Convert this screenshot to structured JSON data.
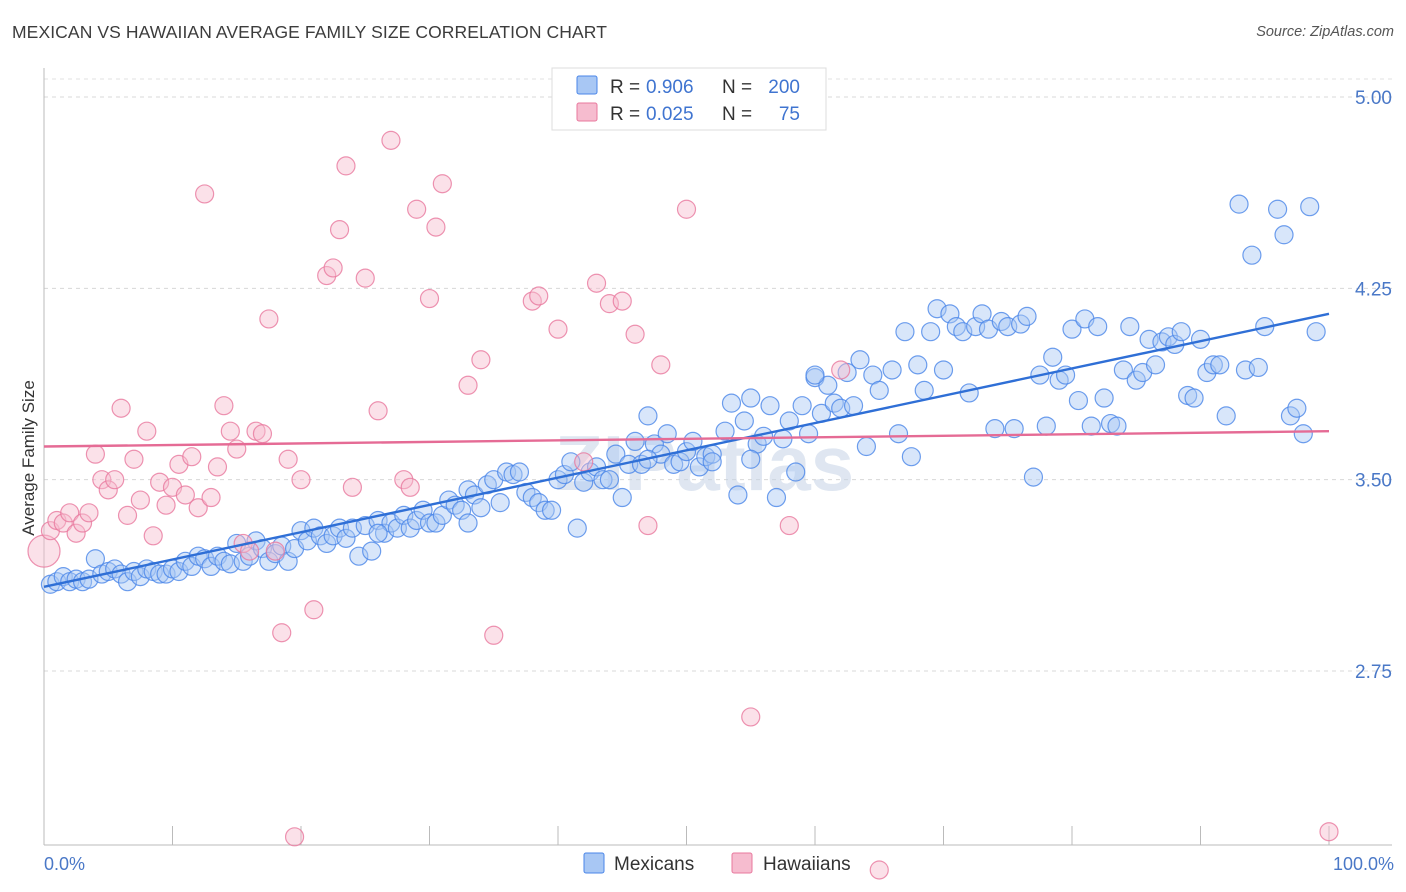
{
  "header": {
    "title": "MEXICAN VS HAWAIIAN AVERAGE FAMILY SIZE CORRELATION CHART",
    "source": "Source: ZipAtlas.com"
  },
  "watermark": "ZIPatlas",
  "legend": {
    "r_label": "R =",
    "n_label": "N =",
    "rows": [
      {
        "r": "0.906",
        "n": "200",
        "color": "#4a86e8"
      },
      {
        "r": "0.025",
        "n": "75",
        "color": "#e8789e"
      }
    ]
  },
  "bottom_legend": [
    {
      "label": "Mexicans",
      "color": "#4a86e8"
    },
    {
      "label": "Hawaiians",
      "color": "#e8789e"
    }
  ],
  "chart_data": {
    "type": "scatter",
    "xlabel": "",
    "ylabel": "Average Family Size",
    "xlim": [
      0,
      100
    ],
    "ylim": [
      2.0,
      5.1
    ],
    "x_tick_labels": [
      {
        "v": 0,
        "t": "0.0%"
      },
      {
        "v": 100,
        "t": "100.0%"
      }
    ],
    "y_ticks": [
      {
        "v": 5.0,
        "t": "5.00"
      },
      {
        "v": 4.25,
        "t": "4.25"
      },
      {
        "v": 3.5,
        "t": "3.50"
      },
      {
        "v": 2.75,
        "t": "2.75"
      }
    ],
    "grid": "horizontal dashed",
    "series": [
      {
        "name": "Mexicans",
        "color": "#4a86e8",
        "trend": {
          "x0": 0,
          "y0": 3.08,
          "x1": 100,
          "y1": 4.15
        },
        "points": [
          [
            0.5,
            3.09
          ],
          [
            1,
            3.1
          ],
          [
            1.5,
            3.12
          ],
          [
            2,
            3.1
          ],
          [
            2.5,
            3.11
          ],
          [
            3,
            3.1
          ],
          [
            3.5,
            3.11
          ],
          [
            4,
            3.19
          ],
          [
            4.5,
            3.13
          ],
          [
            5,
            3.14
          ],
          [
            5.5,
            3.15
          ],
          [
            6,
            3.13
          ],
          [
            6.5,
            3.1
          ],
          [
            7,
            3.14
          ],
          [
            7.5,
            3.12
          ],
          [
            8,
            3.15
          ],
          [
            8.5,
            3.14
          ],
          [
            9,
            3.13
          ],
          [
            9.5,
            3.13
          ],
          [
            10,
            3.15
          ],
          [
            10.5,
            3.14
          ],
          [
            11,
            3.18
          ],
          [
            11.5,
            3.16
          ],
          [
            12,
            3.2
          ],
          [
            12.5,
            3.19
          ],
          [
            13,
            3.16
          ],
          [
            13.5,
            3.2
          ],
          [
            14,
            3.18
          ],
          [
            14.5,
            3.17
          ],
          [
            15,
            3.25
          ],
          [
            15.5,
            3.18
          ],
          [
            16,
            3.2
          ],
          [
            16.5,
            3.26
          ],
          [
            17,
            3.23
          ],
          [
            17.5,
            3.18
          ],
          [
            18,
            3.21
          ],
          [
            18.5,
            3.24
          ],
          [
            19,
            3.18
          ],
          [
            19.5,
            3.23
          ],
          [
            20,
            3.3
          ],
          [
            20.5,
            3.26
          ],
          [
            21,
            3.31
          ],
          [
            21.5,
            3.28
          ],
          [
            22,
            3.25
          ],
          [
            22.5,
            3.28
          ],
          [
            23,
            3.31
          ],
          [
            23.5,
            3.27
          ],
          [
            24,
            3.31
          ],
          [
            24.5,
            3.2
          ],
          [
            25,
            3.32
          ],
          [
            25.5,
            3.22
          ],
          [
            26,
            3.34
          ],
          [
            26.5,
            3.29
          ],
          [
            27,
            3.33
          ],
          [
            27.5,
            3.31
          ],
          [
            28,
            3.36
          ],
          [
            28.5,
            3.31
          ],
          [
            29,
            3.34
          ],
          [
            29.5,
            3.38
          ],
          [
            30,
            3.33
          ],
          [
            30.5,
            3.33
          ],
          [
            31,
            3.36
          ],
          [
            31.5,
            3.42
          ],
          [
            32,
            3.4
          ],
          [
            32.5,
            3.38
          ],
          [
            33,
            3.46
          ],
          [
            33.5,
            3.44
          ],
          [
            34,
            3.39
          ],
          [
            34.5,
            3.48
          ],
          [
            35,
            3.5
          ],
          [
            35.5,
            3.41
          ],
          [
            36,
            3.53
          ],
          [
            36.5,
            3.52
          ],
          [
            37,
            3.53
          ],
          [
            37.5,
            3.45
          ],
          [
            38,
            3.43
          ],
          [
            38.5,
            3.41
          ],
          [
            39,
            3.38
          ],
          [
            39.5,
            3.38
          ],
          [
            40,
            3.5
          ],
          [
            40.5,
            3.52
          ],
          [
            41,
            3.57
          ],
          [
            41.5,
            3.31
          ],
          [
            42,
            3.49
          ],
          [
            42.5,
            3.53
          ],
          [
            43,
            3.55
          ],
          [
            43.5,
            3.5
          ],
          [
            44,
            3.5
          ],
          [
            44.5,
            3.6
          ],
          [
            45,
            3.43
          ],
          [
            45.5,
            3.56
          ],
          [
            46,
            3.65
          ],
          [
            46.5,
            3.56
          ],
          [
            47,
            3.75
          ],
          [
            47.5,
            3.64
          ],
          [
            48,
            3.6
          ],
          [
            48.5,
            3.68
          ],
          [
            49,
            3.56
          ],
          [
            49.5,
            3.57
          ],
          [
            50,
            3.61
          ],
          [
            50.5,
            3.65
          ],
          [
            51,
            3.55
          ],
          [
            51.5,
            3.59
          ],
          [
            52,
            3.6
          ],
          [
            53,
            3.69
          ],
          [
            53.5,
            3.8
          ],
          [
            54,
            3.44
          ],
          [
            54.5,
            3.73
          ],
          [
            55,
            3.82
          ],
          [
            55.5,
            3.64
          ],
          [
            56,
            3.67
          ],
          [
            56.5,
            3.79
          ],
          [
            57,
            3.43
          ],
          [
            57.5,
            3.66
          ],
          [
            58,
            3.73
          ],
          [
            58.5,
            3.53
          ],
          [
            59,
            3.79
          ],
          [
            59.5,
            3.68
          ],
          [
            60,
            3.9
          ],
          [
            60.5,
            3.76
          ],
          [
            61,
            3.87
          ],
          [
            61.5,
            3.8
          ],
          [
            62,
            3.78
          ],
          [
            62.5,
            3.92
          ],
          [
            63,
            3.79
          ],
          [
            63.5,
            3.97
          ],
          [
            64,
            3.63
          ],
          [
            64.5,
            3.91
          ],
          [
            65,
            3.85
          ],
          [
            66,
            3.93
          ],
          [
            66.5,
            3.68
          ],
          [
            67,
            4.08
          ],
          [
            67.5,
            3.59
          ],
          [
            68,
            3.95
          ],
          [
            68.5,
            3.85
          ],
          [
            69,
            4.08
          ],
          [
            69.5,
            4.17
          ],
          [
            70,
            3.93
          ],
          [
            70.5,
            4.15
          ],
          [
            71,
            4.1
          ],
          [
            71.5,
            4.08
          ],
          [
            72,
            3.84
          ],
          [
            72.5,
            4.1
          ],
          [
            73,
            4.15
          ],
          [
            73.5,
            4.09
          ],
          [
            74,
            3.7
          ],
          [
            74.5,
            4.12
          ],
          [
            75,
            4.1
          ],
          [
            75.5,
            3.7
          ],
          [
            76,
            4.11
          ],
          [
            76.5,
            4.14
          ],
          [
            77,
            3.51
          ],
          [
            77.5,
            3.91
          ],
          [
            78,
            3.71
          ],
          [
            78.5,
            3.98
          ],
          [
            79,
            3.89
          ],
          [
            79.5,
            3.91
          ],
          [
            80,
            4.09
          ],
          [
            80.5,
            3.81
          ],
          [
            81,
            4.13
          ],
          [
            81.5,
            3.71
          ],
          [
            82,
            4.1
          ],
          [
            82.5,
            3.82
          ],
          [
            83,
            3.72
          ],
          [
            83.5,
            3.71
          ],
          [
            84,
            3.93
          ],
          [
            84.5,
            4.1
          ],
          [
            85,
            3.89
          ],
          [
            85.5,
            3.92
          ],
          [
            86,
            4.05
          ],
          [
            86.5,
            3.95
          ],
          [
            87,
            4.04
          ],
          [
            87.5,
            4.06
          ],
          [
            88,
            4.03
          ],
          [
            88.5,
            4.08
          ],
          [
            89,
            3.83
          ],
          [
            89.5,
            3.82
          ],
          [
            90,
            4.05
          ],
          [
            90.5,
            3.92
          ],
          [
            91,
            3.95
          ],
          [
            91.5,
            3.95
          ],
          [
            92,
            3.75
          ],
          [
            93,
            4.58
          ],
          [
            93.5,
            3.93
          ],
          [
            94,
            4.38
          ],
          [
            94.5,
            3.94
          ],
          [
            95,
            4.1
          ],
          [
            96,
            4.56
          ],
          [
            96.5,
            4.46
          ],
          [
            97,
            3.75
          ],
          [
            97.5,
            3.78
          ],
          [
            98,
            3.68
          ],
          [
            98.5,
            4.57
          ],
          [
            99,
            4.08
          ],
          [
            60,
            3.91
          ],
          [
            55,
            3.58
          ],
          [
            47,
            3.58
          ],
          [
            52,
            3.57
          ],
          [
            33,
            3.33
          ],
          [
            26,
            3.29
          ]
        ]
      },
      {
        "name": "Hawaiians",
        "color": "#e8789e",
        "trend": {
          "x0": 0,
          "y0": 3.63,
          "x1": 100,
          "y1": 3.69
        },
        "points": [
          [
            0,
            3.22
          ],
          [
            0.5,
            3.3
          ],
          [
            1,
            3.34
          ],
          [
            1.5,
            3.33
          ],
          [
            2,
            3.37
          ],
          [
            2.5,
            3.29
          ],
          [
            3,
            3.33
          ],
          [
            3.5,
            3.37
          ],
          [
            4,
            3.6
          ],
          [
            4.5,
            3.5
          ],
          [
            5,
            3.46
          ],
          [
            5.5,
            3.5
          ],
          [
            6,
            3.78
          ],
          [
            6.5,
            3.36
          ],
          [
            7,
            3.58
          ],
          [
            7.5,
            3.42
          ],
          [
            8,
            3.69
          ],
          [
            8.5,
            3.28
          ],
          [
            9,
            3.49
          ],
          [
            9.5,
            3.4
          ],
          [
            10,
            3.47
          ],
          [
            10.5,
            3.56
          ],
          [
            11,
            3.44
          ],
          [
            11.5,
            3.59
          ],
          [
            12,
            3.39
          ],
          [
            12.5,
            4.62
          ],
          [
            13,
            3.43
          ],
          [
            13.5,
            3.55
          ],
          [
            14,
            3.79
          ],
          [
            14.5,
            3.69
          ],
          [
            15,
            3.62
          ],
          [
            15.5,
            3.25
          ],
          [
            16,
            3.22
          ],
          [
            16.5,
            3.69
          ],
          [
            17,
            3.68
          ],
          [
            17.5,
            4.13
          ],
          [
            18,
            3.22
          ],
          [
            18.5,
            2.9
          ],
          [
            19,
            3.58
          ],
          [
            19.5,
            2.1
          ],
          [
            20,
            3.5
          ],
          [
            21,
            2.99
          ],
          [
            22,
            4.3
          ],
          [
            22.5,
            4.33
          ],
          [
            23,
            4.48
          ],
          [
            23.5,
            4.73
          ],
          [
            24,
            3.47
          ],
          [
            25,
            4.29
          ],
          [
            26,
            3.77
          ],
          [
            27,
            4.83
          ],
          [
            28,
            3.5
          ],
          [
            28.5,
            3.47
          ],
          [
            29,
            4.56
          ],
          [
            30,
            4.21
          ],
          [
            30.5,
            4.49
          ],
          [
            31,
            4.66
          ],
          [
            33,
            3.87
          ],
          [
            34,
            3.97
          ],
          [
            35,
            2.89
          ],
          [
            38,
            4.2
          ],
          [
            38.5,
            4.22
          ],
          [
            40,
            4.09
          ],
          [
            42,
            3.57
          ],
          [
            43,
            4.27
          ],
          [
            44,
            4.19
          ],
          [
            45,
            4.2
          ],
          [
            46,
            4.07
          ],
          [
            47,
            3.32
          ],
          [
            48,
            3.95
          ],
          [
            50,
            4.56
          ],
          [
            55,
            2.57
          ],
          [
            58,
            3.32
          ],
          [
            62,
            3.93
          ],
          [
            65,
            1.97
          ],
          [
            100,
            2.12
          ]
        ]
      }
    ]
  }
}
